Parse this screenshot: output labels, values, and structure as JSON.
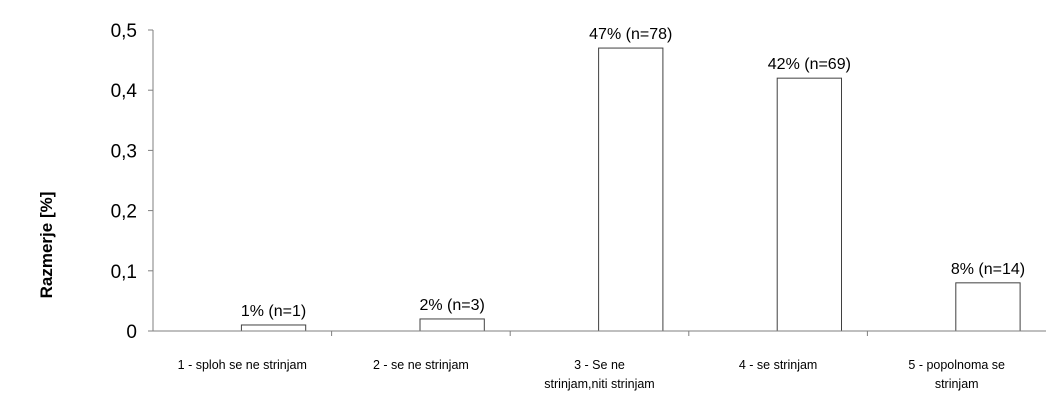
{
  "chart_data": {
    "type": "bar",
    "ylabel": "Razmerje [%]",
    "xlabel": "",
    "ylim": [
      0,
      0.5
    ],
    "yticks": [
      "0",
      "0,1",
      "0,2",
      "0,3",
      "0,4",
      "0,5"
    ],
    "yticks_values": [
      0,
      0.1,
      0.2,
      0.3,
      0.4,
      0.5
    ],
    "categories": [
      [
        "1 - sploh se ne strinjam"
      ],
      [
        "2 - se ne strinjam"
      ],
      [
        "3 - Se ne",
        "strinjam,niti strinjam"
      ],
      [
        "4 - se strinjam"
      ],
      [
        "5 - popolnoma se",
        "strinjam"
      ]
    ],
    "values": [
      0.01,
      0.02,
      0.47,
      0.42,
      0.08
    ],
    "data_labels": [
      "1% (n=1)",
      "2% (n=3)",
      "47% (n=78)",
      "42% (n=69)",
      "8% (n=14)"
    ],
    "grid": false,
    "legend": "none",
    "colors": {
      "bar_fill": "#ffffff",
      "bar_stroke": "#404040",
      "axis": "#7f7f7f"
    }
  }
}
